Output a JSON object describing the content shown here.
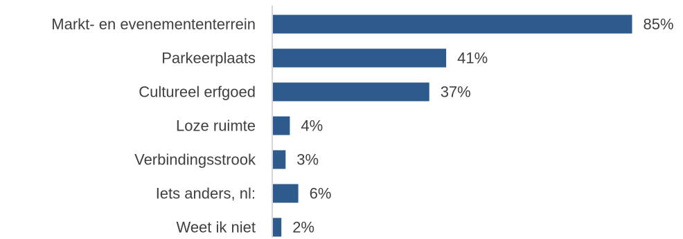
{
  "chart_data": {
    "type": "bar",
    "orientation": "horizontal",
    "categories": [
      "Markt- en evenemententerrein",
      "Parkeerplaats",
      "Cultureel erfgoed",
      "Loze ruimte",
      "Verbindingsstrook",
      "Iets anders, nl:",
      "Weet ik niet"
    ],
    "values": [
      85,
      41,
      37,
      4,
      3,
      6,
      2
    ],
    "value_labels": [
      "85%",
      "41%",
      "37%",
      "4%",
      "3%",
      "6%",
      "2%"
    ],
    "xlim": [
      0,
      100
    ],
    "unit": "%",
    "bar_color": "#2e5a8c",
    "axis_color": "#c8c8c8",
    "grid": false,
    "legend": "none"
  }
}
